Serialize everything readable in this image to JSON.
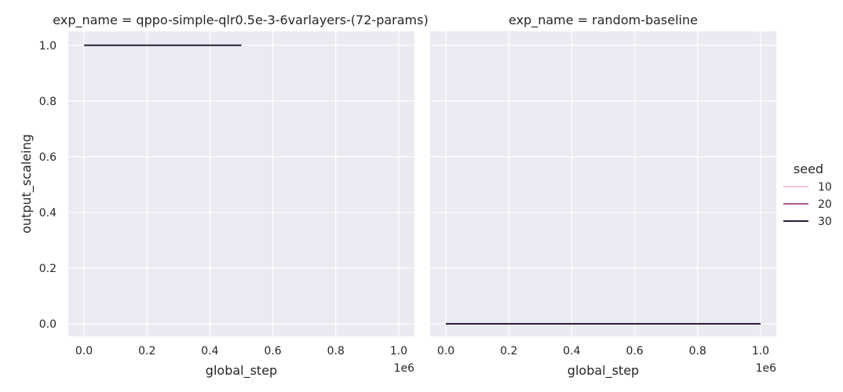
{
  "figure": {
    "legend": {
      "title": "seed",
      "entries": [
        {
          "label": "10",
          "color": "#ecc5c9"
        },
        {
          "label": "20",
          "color": "#a25d80"
        },
        {
          "label": "30",
          "color": "#2e1e3b"
        }
      ]
    },
    "colors": {
      "panel_bg": "#eaeaf2",
      "grid": "#ffffff",
      "text": "#262626"
    }
  },
  "chart_data": [
    {
      "type": "line",
      "title": "exp_name = qppo-simple-qlr0.5e-3-6varlayers-(72-params)",
      "xlabel": "global_step",
      "ylabel": "output_scaleing",
      "x_offset_label": "1e6",
      "xlim": [
        -0.05,
        1.05
      ],
      "ylim": [
        -0.045,
        1.05
      ],
      "xticks": [
        "0.0",
        "0.2",
        "0.4",
        "0.6",
        "0.8",
        "1.0"
      ],
      "yticks": [
        "0.0",
        "0.2",
        "0.4",
        "0.6",
        "0.8",
        "1.0"
      ],
      "grid": true,
      "series": [
        {
          "name": "30",
          "color": "#2e1e3b",
          "x": [
            0.0,
            0.5
          ],
          "y": [
            1.0,
            1.0
          ]
        }
      ]
    },
    {
      "type": "line",
      "title": "exp_name = random-baseline",
      "xlabel": "global_step",
      "ylabel": "",
      "x_offset_label": "1e6",
      "xlim": [
        -0.05,
        1.05
      ],
      "ylim": [
        -0.045,
        1.05
      ],
      "xticks": [
        "0.0",
        "0.2",
        "0.4",
        "0.6",
        "0.8",
        "1.0"
      ],
      "yticks": [],
      "grid": true,
      "series": [
        {
          "name": "10",
          "color": "#ecc5c9",
          "x": [
            0.0,
            1.0
          ],
          "y": [
            0.0,
            0.0
          ]
        },
        {
          "name": "20",
          "color": "#a25d80",
          "x": [
            0.0,
            1.0
          ],
          "y": [
            0.0,
            0.0
          ]
        },
        {
          "name": "30",
          "color": "#2e1e3b",
          "x": [
            0.0,
            1.0
          ],
          "y": [
            0.0,
            0.0
          ]
        }
      ]
    }
  ]
}
